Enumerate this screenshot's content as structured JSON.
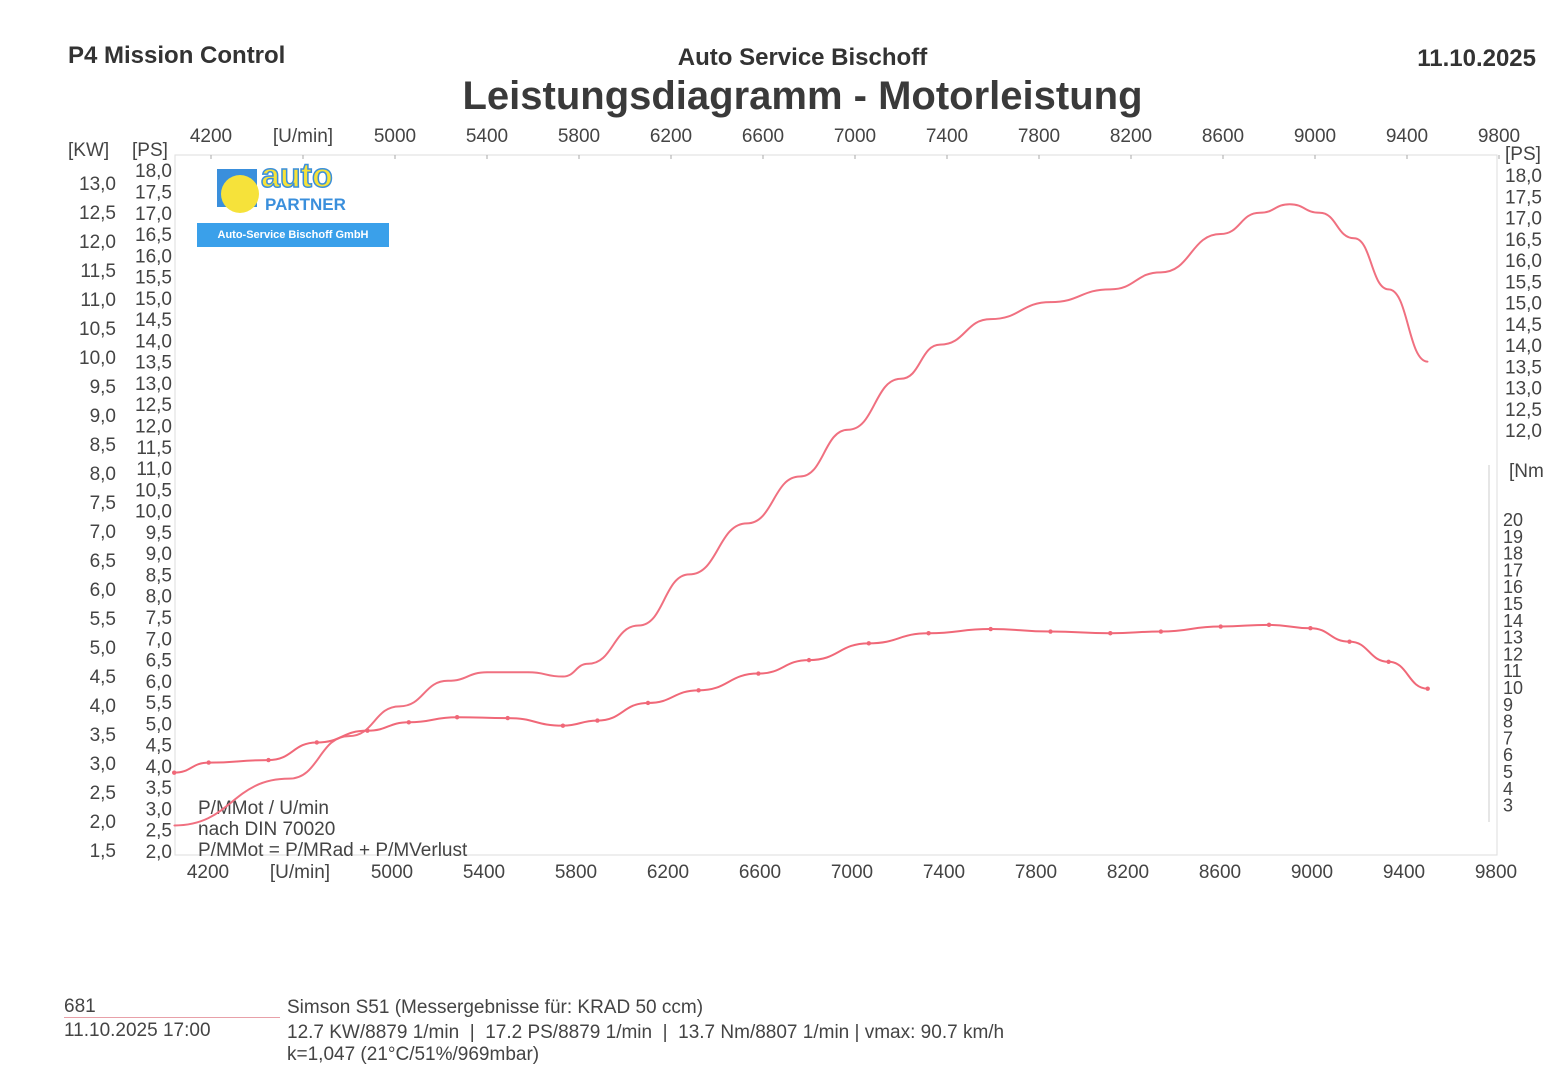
{
  "header": {
    "left": "P4 Mission Control",
    "center": "Auto Service Bischoff",
    "date": "11.10.2025",
    "title": "Leistungsdiagramm - Motorleistung"
  },
  "logo": {
    "word1": "auto",
    "word2": "PARTNER",
    "banner": "Auto-Service Bischoff GmbH"
  },
  "footer": {
    "run_id": "681",
    "datetime": "11.10.2025  17:00",
    "vehicle": "Simson S51 (Messergebnisse für: KRAD 50 ccm)",
    "results": "12.7 KW/8879 1/min  |  17.2 PS/8879 1/min  |  13.7 Nm/8807 1/min | vmax: 90.7 km/h",
    "correction": "k=1,047 (21°C/51%/969mbar)"
  },
  "chart_data": {
    "type": "line",
    "title": "Leistungsdiagramm - Motorleistung",
    "xlabel": "[U/min]",
    "xlim": [
      4050,
      9800
    ],
    "x_ticks": [
      "4200",
      "[U/min]",
      "5000",
      "5400",
      "5800",
      "6200",
      "6600",
      "7000",
      "7400",
      "7800",
      "8200",
      "8600",
      "9000",
      "9400",
      "9800"
    ],
    "x_tick_values": [
      4200,
      4600,
      5000,
      5400,
      5800,
      6200,
      6600,
      7000,
      7400,
      7800,
      8200,
      8600,
      9000,
      9400,
      9800
    ],
    "left_kw_axis": {
      "label": "[KW]",
      "range": [
        1.5,
        13.0
      ],
      "ticks": [
        "1,5",
        "2,0",
        "2,5",
        "3,0",
        "3,5",
        "4,0",
        "4,5",
        "5,0",
        "5,5",
        "6,0",
        "6,5",
        "7,0",
        "7,5",
        "8,0",
        "8,5",
        "9,0",
        "9,5",
        "10,0",
        "10,5",
        "11,0",
        "11,5",
        "12,0",
        "12,5",
        "13,0"
      ]
    },
    "left_ps_axis": {
      "label": "[PS]",
      "range": [
        2.0,
        18.0
      ],
      "ticks": [
        "2,0",
        "2,5",
        "3,0",
        "3,5",
        "4,0",
        "4,5",
        "5,0",
        "5,5",
        "6,0",
        "6,5",
        "7,0",
        "7,5",
        "8,0",
        "8,5",
        "9,0",
        "9,5",
        "10,0",
        "10,5",
        "11,0",
        "11,5",
        "12,0",
        "12,5",
        "13,0",
        "13,5",
        "14,0",
        "14,5",
        "15,0",
        "15,5",
        "16,0",
        "16,5",
        "17,0",
        "17,5",
        "18,0"
      ]
    },
    "right_ps_axis": {
      "label": "[PS]",
      "ticks": [
        "12,0",
        "12,5",
        "13,0",
        "13,5",
        "14,0",
        "14,5",
        "15,0",
        "15,5",
        "16,0",
        "16,5",
        "17,0",
        "17,5",
        "18,0"
      ]
    },
    "right_nm_axis": {
      "label": "[Nm",
      "range": [
        3,
        20
      ],
      "ticks": [
        "3",
        "4",
        "5",
        "6",
        "7",
        "8",
        "9",
        "10",
        "11",
        "12",
        "13",
        "14",
        "15",
        "16",
        "17",
        "18",
        "19",
        "20"
      ]
    },
    "annotations": [
      "P/MMot / U/min",
      "nach DIN 70020",
      "P/MMot = P/MRad + P/MVerlust"
    ],
    "series": [
      {
        "name": "Leistung (PS)",
        "axis": "ps",
        "color": "#f07080",
        "x": [
          4040,
          4540,
          4800,
          5020,
          5230,
          5400,
          5580,
          5730,
          5840,
          6060,
          6280,
          6530,
          6760,
          6970,
          7200,
          7370,
          7590,
          7850,
          8110,
          8330,
          8590,
          8760,
          8890,
          9020,
          9170,
          9320,
          9490
        ],
        "y": [
          2.6,
          3.7,
          4.7,
          5.4,
          6.0,
          6.2,
          6.2,
          6.1,
          6.4,
          7.3,
          8.5,
          9.7,
          10.8,
          11.9,
          13.1,
          13.9,
          14.5,
          14.9,
          15.2,
          15.6,
          16.5,
          17.0,
          17.2,
          17.0,
          16.4,
          15.2,
          13.5
        ]
      },
      {
        "name": "Drehmoment (Nm)",
        "axis": "nm",
        "color": "#f06878",
        "x": [
          4040,
          4190,
          4450,
          4660,
          4880,
          5060,
          5270,
          5490,
          5730,
          5880,
          6100,
          6320,
          6580,
          6800,
          7060,
          7320,
          7590,
          7850,
          8110,
          8330,
          8590,
          8800,
          8980,
          9150,
          9320,
          9490
        ],
        "y": [
          4.9,
          5.5,
          5.65,
          6.7,
          7.4,
          7.9,
          8.2,
          8.15,
          7.7,
          8.0,
          9.05,
          9.8,
          10.8,
          11.6,
          12.6,
          13.2,
          13.45,
          13.3,
          13.2,
          13.3,
          13.6,
          13.7,
          13.5,
          12.7,
          11.5,
          9.9
        ]
      }
    ]
  }
}
